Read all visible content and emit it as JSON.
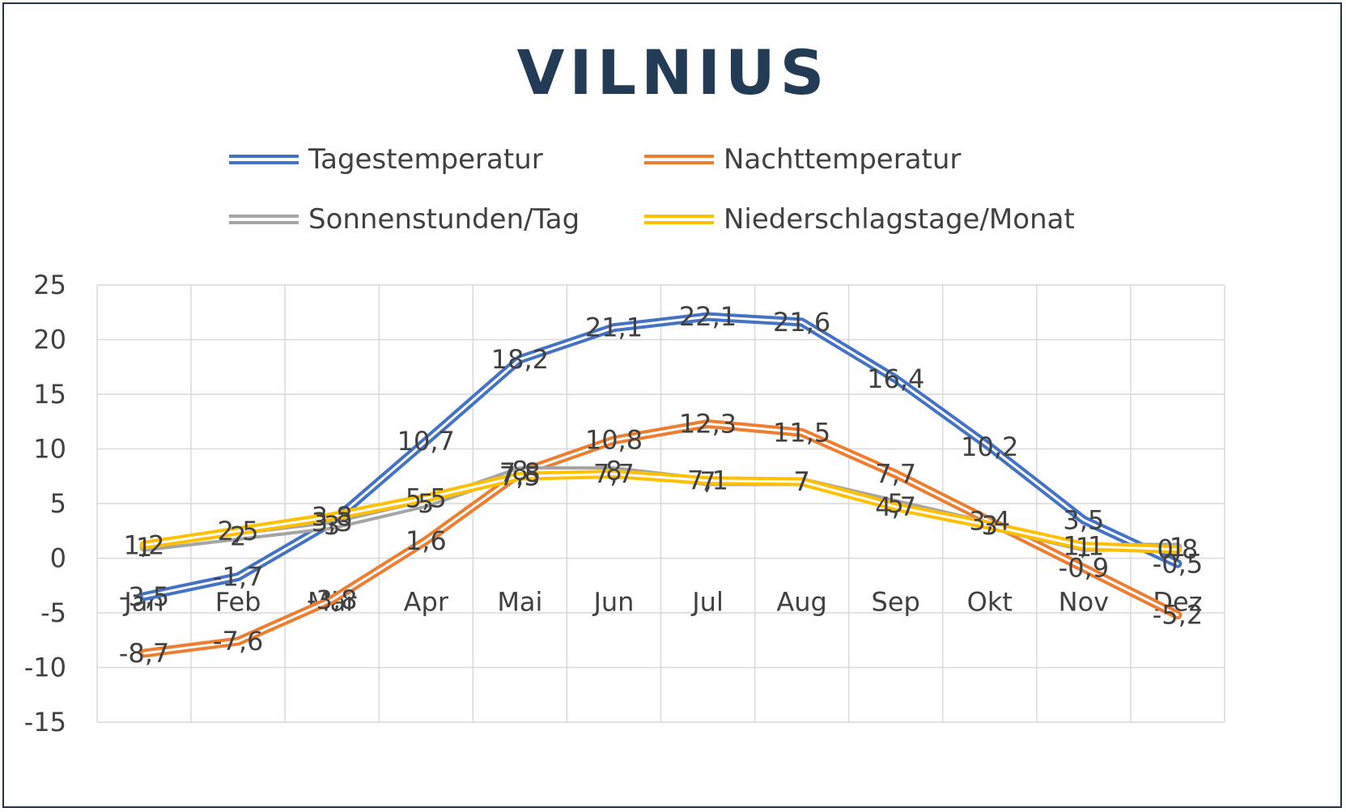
{
  "colors": {
    "frame": "#22344a",
    "title": "#243b55",
    "grid": "#d9d9d9",
    "text": "#404040"
  },
  "chart_data": {
    "type": "line",
    "title": "VILNIUS",
    "xlabel": "",
    "ylabel": "",
    "categories": [
      "Jan",
      "Feb",
      "Mär",
      "Apr",
      "Mai",
      "Jun",
      "Jul",
      "Aug",
      "Sep",
      "Okt",
      "Nov",
      "Dez"
    ],
    "ylim": [
      -15,
      25
    ],
    "yticks": [
      -15,
      -10,
      -5,
      0,
      5,
      10,
      15,
      20,
      25
    ],
    "ytick_labels": [
      "-15",
      "-10",
      "-5",
      "0",
      "5",
      "10",
      "15",
      "20",
      "25"
    ],
    "grid": true,
    "legend_position": "top",
    "series": [
      {
        "name": "Tagestemperatur",
        "color": "#4472c4",
        "values": [
          -3.5,
          -1.7,
          3.3,
          10.7,
          18.2,
          21.1,
          22.1,
          21.6,
          16.4,
          10.2,
          3.5,
          -0.5
        ],
        "labels": [
          "-3,5",
          "-1,7",
          "3,3",
          "10,7",
          "18,2",
          "21,1",
          "22,1",
          "21,6",
          "16,4",
          "10,2",
          "3,5",
          "-0,5"
        ]
      },
      {
        "name": "Nachttemperatur",
        "color": "#ed7d31",
        "values": [
          -8.7,
          -7.6,
          -3.8,
          1.6,
          7.8,
          10.8,
          12.3,
          11.5,
          7.7,
          3.4,
          -0.9,
          -5.2
        ],
        "labels": [
          "-8,7",
          "-7,6",
          "-3,8",
          "1,6",
          "7,8",
          "10,8",
          "12,3",
          "11,5",
          "7,7",
          "3,4",
          "-0,9",
          "-5,2"
        ]
      },
      {
        "name": "Sonnenstunden/Tag",
        "color": "#a5a5a5",
        "values": [
          1,
          2,
          3,
          5,
          8,
          8,
          7,
          7,
          5,
          3,
          1,
          1
        ],
        "labels": [
          "1",
          "2",
          "3",
          "5",
          "8",
          "8",
          "7",
          "7",
          "5",
          "3",
          "1",
          "1"
        ]
      },
      {
        "name": "Niederschlagstage/Monat",
        "color": "#ffc000",
        "values": [
          1.2,
          2.5,
          3.8,
          5.5,
          7.5,
          7.7,
          7.1,
          7,
          4.7,
          3,
          1.1,
          0.8
        ],
        "labels": [
          "1,2",
          "2,5",
          "3,8",
          "5,5",
          "7,5",
          "7,7",
          "7,1",
          "7",
          "4,7",
          "3",
          "1,1",
          "0,8"
        ]
      }
    ]
  }
}
